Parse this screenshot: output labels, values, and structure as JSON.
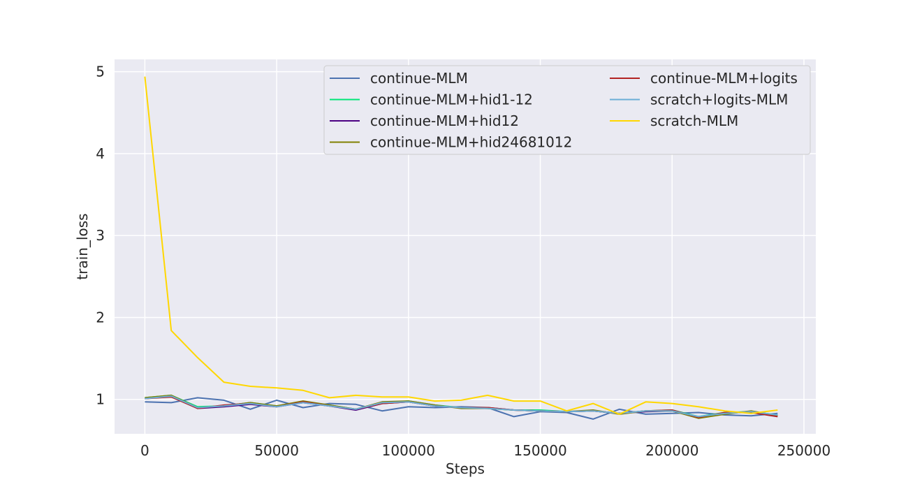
{
  "chart_data": {
    "type": "line",
    "title": "",
    "xlabel": "Steps",
    "ylabel": "train_loss",
    "xlim": [
      -11500,
      254500
    ],
    "ylim": [
      0.58,
      5.15
    ],
    "xticks": [
      0,
      50000,
      100000,
      150000,
      200000,
      250000
    ],
    "xtick_labels": [
      "0",
      "50000",
      "100000",
      "150000",
      "200000",
      "250000"
    ],
    "yticks": [
      1,
      2,
      3,
      4,
      5
    ],
    "ytick_labels": [
      "1",
      "2",
      "3",
      "4",
      "5"
    ],
    "grid": true,
    "background": "#eaeaf2",
    "legend_position": "top-right",
    "legend_columns": 2,
    "x": [
      0,
      10000,
      20000,
      30000,
      40000,
      50000,
      60000,
      70000,
      80000,
      90000,
      100000,
      110000,
      120000,
      130000,
      140000,
      150000,
      160000,
      170000,
      180000,
      190000,
      200000,
      210000,
      220000,
      230000,
      240000
    ],
    "series": [
      {
        "name": "continue-MLM",
        "color": "#4c72b0",
        "values": [
          0.97,
          0.96,
          1.02,
          0.99,
          0.88,
          0.99,
          0.9,
          0.95,
          0.94,
          0.86,
          0.91,
          0.9,
          0.91,
          0.9,
          0.79,
          0.85,
          0.84,
          0.76,
          0.88,
          0.82,
          0.83,
          0.84,
          0.81,
          0.8,
          0.83
        ]
      },
      {
        "name": "continue-MLM+hid1-12",
        "color": "#00e676",
        "values": [
          1.02,
          1.05,
          0.91,
          0.92,
          0.96,
          0.92,
          0.97,
          0.93,
          0.88,
          0.96,
          0.98,
          0.93,
          0.9,
          0.89,
          0.87,
          0.87,
          0.85,
          0.86,
          0.83,
          0.86,
          0.87,
          0.79,
          0.84,
          0.85,
          0.81
        ]
      },
      {
        "name": "continue-MLM+hid12",
        "color": "#4b0082",
        "values": [
          1.01,
          1.04,
          0.89,
          0.91,
          0.94,
          0.91,
          0.96,
          0.92,
          0.87,
          0.95,
          0.97,
          0.92,
          0.9,
          0.9,
          0.87,
          0.86,
          0.85,
          0.86,
          0.83,
          0.85,
          0.86,
          0.78,
          0.83,
          0.85,
          0.8
        ]
      },
      {
        "name": "continue-MLM+hid24681012",
        "color": "#808000",
        "values": [
          1.02,
          1.05,
          0.9,
          0.92,
          0.96,
          0.92,
          0.98,
          0.93,
          0.88,
          0.97,
          0.98,
          0.93,
          0.89,
          0.89,
          0.87,
          0.86,
          0.85,
          0.87,
          0.82,
          0.86,
          0.86,
          0.77,
          0.82,
          0.86,
          0.8
        ]
      },
      {
        "name": "continue-MLM+logits",
        "color": "#b22222",
        "values": [
          1.01,
          1.03,
          0.89,
          0.93,
          0.95,
          0.91,
          0.97,
          0.92,
          0.88,
          0.95,
          0.97,
          0.92,
          0.9,
          0.9,
          0.87,
          0.86,
          0.85,
          0.86,
          0.83,
          0.86,
          0.87,
          0.78,
          0.84,
          0.84,
          0.79
        ]
      },
      {
        "name": "scratch+logits-MLM",
        "color": "#6baed6",
        "values": [
          1.01,
          1.04,
          0.9,
          0.92,
          0.95,
          0.91,
          0.96,
          0.92,
          0.88,
          0.96,
          0.97,
          0.92,
          0.9,
          0.89,
          0.87,
          0.86,
          0.85,
          0.86,
          0.83,
          0.86,
          0.86,
          0.79,
          0.83,
          0.85,
          0.81
        ]
      },
      {
        "name": "scratch-MLM",
        "color": "#ffd700",
        "values": [
          4.94,
          1.84,
          1.51,
          1.21,
          1.16,
          1.14,
          1.11,
          1.02,
          1.05,
          1.03,
          1.03,
          0.98,
          0.99,
          1.05,
          0.98,
          0.98,
          0.86,
          0.95,
          0.82,
          0.97,
          0.95,
          0.91,
          0.86,
          0.83,
          0.87
        ]
      }
    ]
  }
}
